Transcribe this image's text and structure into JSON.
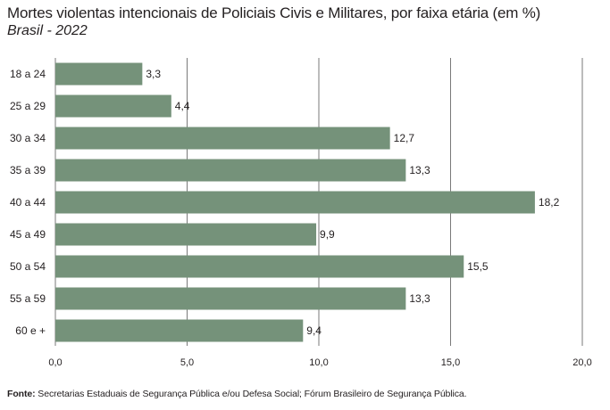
{
  "chart_data": {
    "type": "bar",
    "orientation": "horizontal",
    "title": "Mortes violentas intencionais de Policiais Civis e Militares, por faixa etária (em %)",
    "subtitle": "Brasil - 2022",
    "categories": [
      "18 a 24",
      "25 a 29",
      "30 a 34",
      "35 a 39",
      "40 a 44",
      "45 a 49",
      "50 a 54",
      "55 a 59",
      "60 e +"
    ],
    "values": [
      3.3,
      4.4,
      12.7,
      13.3,
      18.2,
      9.9,
      15.5,
      13.3,
      9.4
    ],
    "value_labels": [
      "3,3",
      "4,4",
      "12,7",
      "13,3",
      "18,2",
      "9,9",
      "15,5",
      "13,3",
      "9,4"
    ],
    "xlim": [
      0,
      20
    ],
    "xticks": [
      0,
      5,
      10,
      15,
      20
    ],
    "xtick_labels": [
      "0,0",
      "5,0",
      "10,0",
      "15,0",
      "20,0"
    ],
    "grid": true,
    "bar_color": "#75927a",
    "grid_color": "#7a7a7a"
  },
  "source": {
    "label": "Fonte:",
    "text": " Secretarias Estaduais de Segurança Pública e/ou Defesa Social; Fórum Brasileiro de Segurança Pública."
  }
}
